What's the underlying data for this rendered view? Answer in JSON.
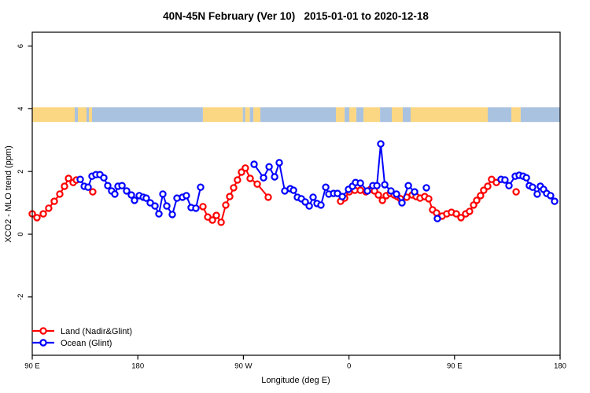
{
  "legend": {
    "items": [
      {
        "label": "Land (Nadir&Glint)",
        "color": "#ff0000"
      },
      {
        "label": "Ocean (Glint)",
        "color": "#0000ff"
      }
    ]
  },
  "colors": {
    "axis": "#000000",
    "band_land": "#fbd683",
    "band_ocean": "#a9c2e0",
    "marker_fill": "#ffffff"
  },
  "chart_data": {
    "type": "line",
    "title": "40N-45N February (Ver 10)   2015-01-01 to 2020-12-18",
    "xlabel": "Longitude (deg E)",
    "ylabel": "XCO2 - MLO trend (ppm)",
    "grid": false,
    "legend_position": "bottom-left",
    "x_axis": {
      "note": "longitude unwrapped eastward starting at 90E",
      "range": [
        90,
        540
      ],
      "ticks": [
        {
          "value": 90,
          "label": "90 E"
        },
        {
          "value": 180,
          "label": "180"
        },
        {
          "value": 270,
          "label": "90 W"
        },
        {
          "value": 360,
          "label": "0"
        },
        {
          "value": 450,
          "label": "90 E"
        },
        {
          "value": 540,
          "label": "180"
        }
      ]
    },
    "y_axis": {
      "range": [
        -3.85,
        6.45
      ],
      "ticks": [
        {
          "value": -2,
          "label": "-2"
        },
        {
          "value": 0,
          "label": "0"
        },
        {
          "value": 2,
          "label": "2"
        },
        {
          "value": 4,
          "label": "4"
        },
        {
          "value": 6,
          "label": "6"
        }
      ]
    },
    "map_band": {
      "y_from": 3.58,
      "y_to": 4.05,
      "segments": [
        [
          90,
          126.2,
          "land"
        ],
        [
          126.2,
          128.9,
          "ocean"
        ],
        [
          128.9,
          136.3,
          "land"
        ],
        [
          136.3,
          138.3,
          "ocean"
        ],
        [
          138.3,
          141.0,
          "land"
        ],
        [
          141.0,
          235.5,
          "ocean"
        ],
        [
          235.5,
          269.5,
          "land"
        ],
        [
          269.5,
          271.5,
          "ocean"
        ],
        [
          271.5,
          275.5,
          "land"
        ],
        [
          275.5,
          278.5,
          "ocean"
        ],
        [
          278.5,
          284.5,
          "land"
        ],
        [
          284.5,
          348.9,
          "ocean"
        ],
        [
          348.9,
          356.3,
          "land"
        ],
        [
          356.3,
          360.3,
          "ocean"
        ],
        [
          360.3,
          366.3,
          "land"
        ],
        [
          366.3,
          372.4,
          "ocean"
        ],
        [
          372.4,
          386.5,
          "land"
        ],
        [
          386.5,
          396.5,
          "ocean"
        ],
        [
          396.5,
          405.9,
          "land"
        ],
        [
          405.9,
          412.6,
          "ocean"
        ],
        [
          412.6,
          478.3,
          "land"
        ],
        [
          478.3,
          498.4,
          "ocean"
        ],
        [
          498.4,
          506.4,
          "land"
        ],
        [
          506.4,
          540,
          "ocean"
        ]
      ]
    },
    "series": [
      {
        "name": "Land (Nadir&Glint)",
        "color": "#ff0000",
        "segments": [
          [
            [
              90,
              0.65
            ],
            [
              94,
              0.53
            ],
            [
              99.4,
              0.65
            ],
            [
              104,
              0.83
            ],
            [
              108.8,
              1.05
            ],
            [
              113.5,
              1.28
            ],
            [
              117.5,
              1.53
            ],
            [
              120.9,
              1.78
            ],
            [
              124.9,
              1.65
            ],
            [
              127.6,
              1.73
            ]
          ],
          [
            [
              141.6,
              1.35
            ]
          ],
          [
            [
              235.5,
              0.88
            ],
            [
              239.6,
              0.55
            ],
            [
              243.6,
              0.45
            ],
            [
              246.9,
              0.6
            ],
            [
              251,
              0.38
            ],
            [
              255,
              0.93
            ],
            [
              258.3,
              1.2
            ],
            [
              261.7,
              1.48
            ],
            [
              265,
              1.73
            ],
            [
              268.4,
              1.98
            ],
            [
              271.7,
              2.11
            ],
            [
              275.8,
              1.78
            ],
            [
              281.8,
              1.6
            ],
            [
              291.2,
              1.18
            ]
          ],
          [
            [
              352.9,
              1.05
            ],
            [
              356.3,
              1.15
            ],
            [
              360.3,
              1.35
            ],
            [
              365,
              1.4
            ],
            [
              369.7,
              1.4
            ],
            [
              374.4,
              1.35
            ],
            [
              378.4,
              1.43
            ],
            [
              381.8,
              1.38
            ],
            [
              385.1,
              1.25
            ],
            [
              388.5,
              1.08
            ],
            [
              391.8,
              1.23
            ],
            [
              395.2,
              1.3
            ],
            [
              398.5,
              1.25
            ],
            [
              401.2,
              1.2
            ],
            [
              403.9,
              1.13
            ],
            [
              409.2,
              1.18
            ],
            [
              413.9,
              1.25
            ],
            [
              417.3,
              1.2
            ],
            [
              420.6,
              1.15
            ],
            [
              424.6,
              1.2
            ],
            [
              428,
              1.13
            ],
            [
              431.3,
              0.78
            ],
            [
              434.7,
              0.68
            ],
            [
              439.4,
              0.58
            ],
            [
              443.4,
              0.65
            ],
            [
              447.4,
              0.7
            ],
            [
              451.5,
              0.65
            ],
            [
              455.5,
              0.53
            ],
            [
              459.5,
              0.65
            ],
            [
              462.8,
              0.73
            ],
            [
              466.2,
              0.93
            ],
            [
              468.9,
              1.08
            ],
            [
              472.2,
              1.23
            ],
            [
              474.9,
              1.4
            ],
            [
              478.3,
              1.53
            ],
            [
              481.6,
              1.75
            ],
            [
              485.7,
              1.65
            ]
          ],
          [
            [
              502.5,
              1.35
            ]
          ]
        ]
      },
      {
        "name": "Ocean (Glint)",
        "color": "#0000ff",
        "segments": [
          [
            [
              130.9,
              1.75
            ],
            [
              134.3,
              1.53
            ],
            [
              137.6,
              1.5
            ],
            [
              141,
              1.85
            ],
            [
              144.3,
              1.9
            ],
            [
              147.7,
              1.9
            ],
            [
              151,
              1.8
            ],
            [
              154.4,
              1.55
            ],
            [
              157.7,
              1.38
            ],
            [
              160.4,
              1.28
            ],
            [
              163.1,
              1.53
            ],
            [
              166.5,
              1.55
            ],
            [
              170.5,
              1.38
            ],
            [
              174.5,
              1.25
            ],
            [
              177.2,
              1.08
            ],
            [
              181.2,
              1.23
            ],
            [
              184.6,
              1.18
            ],
            [
              187.2,
              1.15
            ],
            [
              190.6,
              1.0
            ],
            [
              194.6,
              0.9
            ],
            [
              198,
              0.65
            ],
            [
              201.3,
              1.28
            ],
            [
              204.7,
              0.9
            ],
            [
              209.4,
              0.63
            ],
            [
              213.4,
              1.15
            ],
            [
              218.1,
              1.18
            ],
            [
              221.4,
              1.23
            ],
            [
              225.5,
              0.85
            ],
            [
              229.5,
              0.83
            ],
            [
              233.5,
              1.5
            ]
          ],
          [
            [
              279.1,
              2.23
            ],
            [
              287.2,
              1.8
            ],
            [
              291.9,
              2.15
            ],
            [
              296.6,
              1.83
            ],
            [
              300.6,
              2.28
            ],
            [
              305.3,
              1.38
            ],
            [
              310,
              1.45
            ],
            [
              312.7,
              1.4
            ],
            [
              316,
              1.18
            ],
            [
              319.4,
              1.13
            ],
            [
              322.7,
              1.03
            ],
            [
              326.1,
              0.9
            ],
            [
              329.4,
              1.18
            ],
            [
              332.8,
              0.98
            ],
            [
              336.1,
              0.93
            ],
            [
              340.2,
              1.5
            ],
            [
              342.8,
              1.28
            ],
            [
              346.9,
              1.3
            ],
            [
              350.2,
              1.3
            ],
            [
              354.3,
              1.2
            ],
            [
              359.6,
              1.43
            ],
            [
              363,
              1.53
            ],
            [
              365.6,
              1.65
            ],
            [
              369.7,
              1.63
            ],
            [
              375.7,
              1.38
            ],
            [
              380.4,
              1.55
            ],
            [
              383.8,
              1.55
            ],
            [
              387.1,
              2.88
            ],
            [
              390.5,
              1.58
            ],
            [
              395.8,
              1.38
            ],
            [
              400.5,
              1.28
            ],
            [
              405.2,
              1.0
            ],
            [
              410.6,
              1.55
            ],
            [
              415.9,
              1.35
            ]
          ],
          [
            [
              426,
              1.48
            ]
          ],
          [
            [
              435.4,
              0.5
            ]
          ],
          [
            [
              489.7,
              1.75
            ],
            [
              493,
              1.73
            ],
            [
              496.4,
              1.55
            ],
            [
              501.8,
              1.85
            ],
            [
              505.1,
              1.88
            ],
            [
              508.5,
              1.85
            ],
            [
              511.2,
              1.8
            ],
            [
              513.8,
              1.55
            ],
            [
              516.5,
              1.5
            ],
            [
              520.5,
              1.28
            ],
            [
              523.2,
              1.53
            ],
            [
              525.9,
              1.43
            ],
            [
              528.6,
              1.3
            ],
            [
              531.9,
              1.23
            ],
            [
              535.3,
              1.05
            ]
          ]
        ]
      }
    ]
  }
}
